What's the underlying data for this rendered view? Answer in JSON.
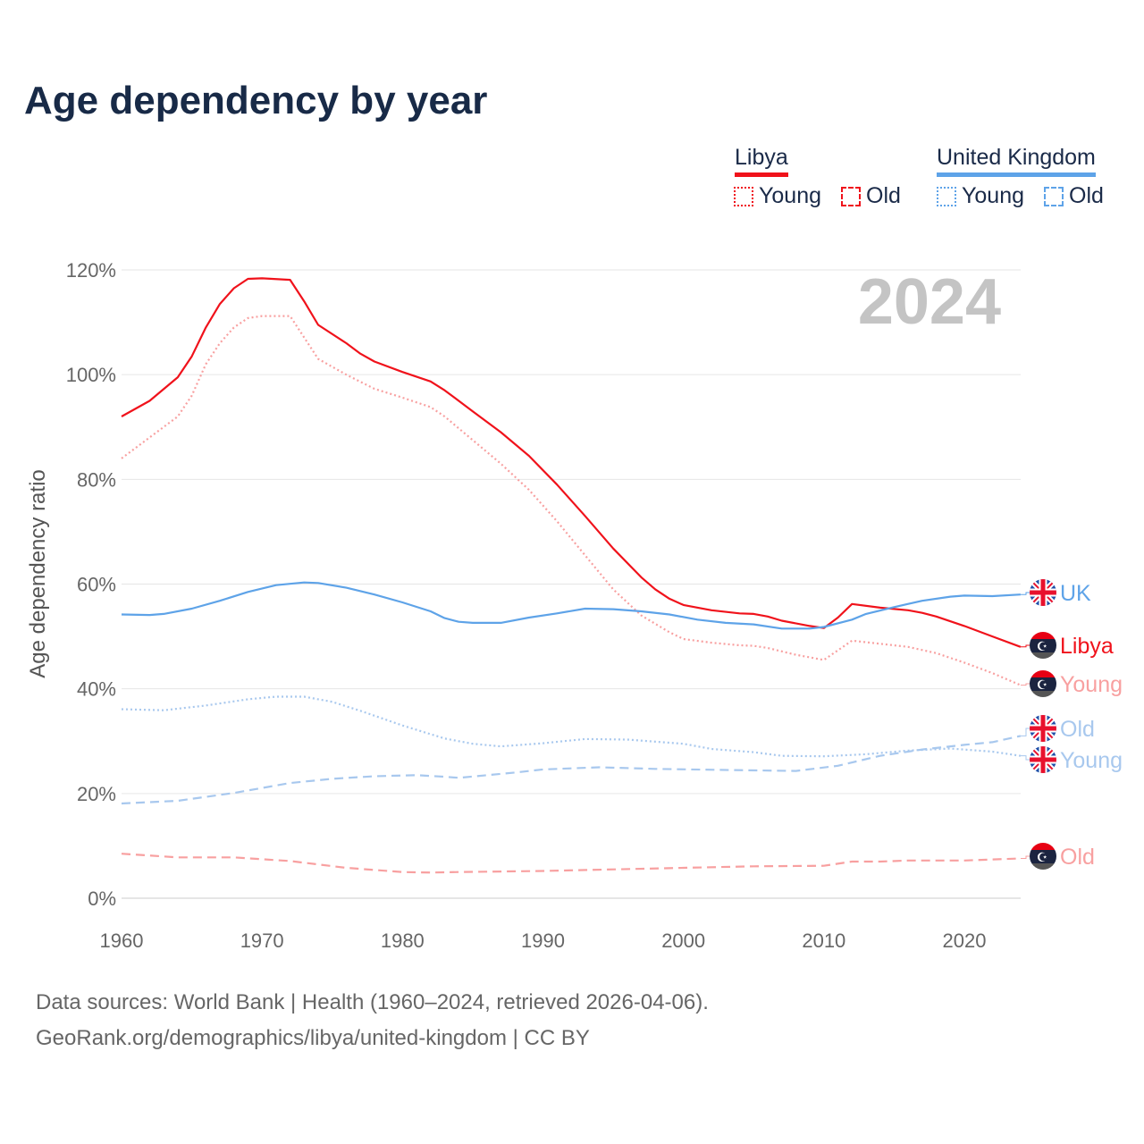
{
  "chart_data": {
    "type": "line",
    "title": "Age dependency by year",
    "ylabel": "Age dependency ratio",
    "xlabel": "",
    "xlim": [
      1960,
      2024
    ],
    "ylim": [
      0,
      120
    ],
    "xticks": [
      "1960",
      "1970",
      "1980",
      "1990",
      "2000",
      "2010",
      "2020"
    ],
    "yticks": [
      "0%",
      "20%",
      "40%",
      "60%",
      "80%",
      "100%",
      "120%"
    ],
    "year_label": "2024",
    "grid": true,
    "legend": {
      "placement": "top-right",
      "groups": [
        {
          "name": "Libya",
          "color": "#f0121b",
          "items": [
            "Young",
            "Old"
          ]
        },
        {
          "name": "United Kingdom",
          "color": "#5ea3e8",
          "items": [
            "Young",
            "Old"
          ]
        }
      ]
    },
    "series": [
      {
        "name": "Libya",
        "end_label": "Libya",
        "country": "libya",
        "style": "solid",
        "color": "#f0121b",
        "points": [
          [
            1960,
            92
          ],
          [
            1962,
            95
          ],
          [
            1964,
            99.5
          ],
          [
            1965,
            103.5
          ],
          [
            1966,
            109
          ],
          [
            1967,
            113.5
          ],
          [
            1968,
            116.5
          ],
          [
            1969,
            118.3
          ],
          [
            1970,
            118.4
          ],
          [
            1972,
            118.1
          ],
          [
            1973,
            114
          ],
          [
            1974,
            109.5
          ],
          [
            1976,
            106
          ],
          [
            1977,
            104
          ],
          [
            1978,
            102.5
          ],
          [
            1980,
            100.5
          ],
          [
            1982,
            98.7
          ],
          [
            1983,
            97
          ],
          [
            1985,
            93
          ],
          [
            1987,
            89
          ],
          [
            1989,
            84.5
          ],
          [
            1991,
            79
          ],
          [
            1993,
            73
          ],
          [
            1995,
            66.8
          ],
          [
            1997,
            61.3
          ],
          [
            1998,
            59
          ],
          [
            1999,
            57.2
          ],
          [
            2000,
            56
          ],
          [
            2002,
            55
          ],
          [
            2004,
            54.4
          ],
          [
            2005,
            54.3
          ],
          [
            2006,
            53.8
          ],
          [
            2007,
            53
          ],
          [
            2009,
            52
          ],
          [
            2010,
            51.6
          ],
          [
            2011,
            53.6
          ],
          [
            2012,
            56.2
          ],
          [
            2014,
            55.5
          ],
          [
            2016,
            55
          ],
          [
            2017,
            54.5
          ],
          [
            2018,
            53.8
          ],
          [
            2020,
            52
          ],
          [
            2022,
            50
          ],
          [
            2024,
            48
          ]
        ]
      },
      {
        "name": "Libya Young",
        "end_label": "Young",
        "country": "libya",
        "style": "dotted",
        "color": "#f8a0a0",
        "points": [
          [
            1960,
            84
          ],
          [
            1964,
            92
          ],
          [
            1965,
            96
          ],
          [
            1966,
            102
          ],
          [
            1967,
            106
          ],
          [
            1968,
            109
          ],
          [
            1969,
            110.8
          ],
          [
            1970,
            111.2
          ],
          [
            1972,
            111.2
          ],
          [
            1974,
            103
          ],
          [
            1976,
            100
          ],
          [
            1978,
            97.3
          ],
          [
            1980,
            95.6
          ],
          [
            1982,
            93.8
          ],
          [
            1983,
            92
          ],
          [
            1985,
            87.5
          ],
          [
            1987,
            83
          ],
          [
            1989,
            78
          ],
          [
            1991,
            72
          ],
          [
            1993,
            65.5
          ],
          [
            1995,
            59
          ],
          [
            1997,
            54
          ],
          [
            1999,
            50.8
          ],
          [
            2000,
            49.5
          ],
          [
            2002,
            48.8
          ],
          [
            2004,
            48.3
          ],
          [
            2005,
            48.2
          ],
          [
            2006,
            47.8
          ],
          [
            2008,
            46.5
          ],
          [
            2010,
            45.5
          ],
          [
            2012,
            49.2
          ],
          [
            2014,
            48.6
          ],
          [
            2016,
            48
          ],
          [
            2018,
            46.8
          ],
          [
            2020,
            45
          ],
          [
            2022,
            43
          ],
          [
            2024,
            40.7
          ]
        ]
      },
      {
        "name": "Libya Old",
        "end_label": "Old",
        "country": "libya",
        "style": "dashed",
        "color": "#f8a0a0",
        "points": [
          [
            1960,
            8.5
          ],
          [
            1964,
            7.8
          ],
          [
            1968,
            7.8
          ],
          [
            1972,
            7.1
          ],
          [
            1976,
            5.8
          ],
          [
            1980,
            5
          ],
          [
            1982,
            4.9
          ],
          [
            1984,
            5
          ],
          [
            1990,
            5.2
          ],
          [
            2000,
            5.8
          ],
          [
            2005,
            6.1
          ],
          [
            2010,
            6.2
          ],
          [
            2012,
            7
          ],
          [
            2014,
            7
          ],
          [
            2016,
            7.2
          ],
          [
            2020,
            7.2
          ],
          [
            2024,
            7.6
          ]
        ]
      },
      {
        "name": "United Kingdom",
        "end_label": "UK",
        "country": "uk",
        "style": "solid",
        "color": "#5ea3e8",
        "points": [
          [
            1960,
            54.2
          ],
          [
            1962,
            54.1
          ],
          [
            1963,
            54.3
          ],
          [
            1965,
            55.3
          ],
          [
            1967,
            56.8
          ],
          [
            1969,
            58.5
          ],
          [
            1971,
            59.8
          ],
          [
            1973,
            60.3
          ],
          [
            1974,
            60.2
          ],
          [
            1976,
            59.3
          ],
          [
            1978,
            58
          ],
          [
            1980,
            56.5
          ],
          [
            1982,
            54.8
          ],
          [
            1983,
            53.5
          ],
          [
            1984,
            52.8
          ],
          [
            1985,
            52.6
          ],
          [
            1987,
            52.6
          ],
          [
            1989,
            53.6
          ],
          [
            1991,
            54.4
          ],
          [
            1993,
            55.3
          ],
          [
            1995,
            55.2
          ],
          [
            1997,
            54.8
          ],
          [
            1999,
            54.2
          ],
          [
            2001,
            53.2
          ],
          [
            2003,
            52.6
          ],
          [
            2005,
            52.3
          ],
          [
            2007,
            51.5
          ],
          [
            2009,
            51.5
          ],
          [
            2010,
            51.8
          ],
          [
            2012,
            53.2
          ],
          [
            2013,
            54.3
          ],
          [
            2015,
            55.6
          ],
          [
            2017,
            56.8
          ],
          [
            2019,
            57.6
          ],
          [
            2020,
            57.8
          ],
          [
            2022,
            57.7
          ],
          [
            2024,
            58
          ]
        ]
      },
      {
        "name": "United Kingdom Young",
        "end_label": "Young",
        "country": "uk",
        "style": "dotted",
        "color": "#a8c8ee",
        "points": [
          [
            1960,
            36.1
          ],
          [
            1963,
            35.9
          ],
          [
            1966,
            36.8
          ],
          [
            1969,
            38
          ],
          [
            1971,
            38.5
          ],
          [
            1973,
            38.5
          ],
          [
            1975,
            37.5
          ],
          [
            1977,
            35.8
          ],
          [
            1980,
            33
          ],
          [
            1983,
            30.5
          ],
          [
            1985,
            29.5
          ],
          [
            1987,
            29
          ],
          [
            1990,
            29.6
          ],
          [
            1993,
            30.4
          ],
          [
            1996,
            30.3
          ],
          [
            2000,
            29.5
          ],
          [
            2002,
            28.5
          ],
          [
            2005,
            27.9
          ],
          [
            2007,
            27.2
          ],
          [
            2010,
            27.1
          ],
          [
            2013,
            27.5
          ],
          [
            2016,
            28.2
          ],
          [
            2019,
            28.6
          ],
          [
            2022,
            28
          ],
          [
            2024,
            27.2
          ]
        ]
      },
      {
        "name": "United Kingdom Old",
        "end_label": "Old",
        "country": "uk",
        "style": "dashed",
        "color": "#a8c8ee",
        "points": [
          [
            1960,
            18.1
          ],
          [
            1964,
            18.6
          ],
          [
            1968,
            20.1
          ],
          [
            1972,
            22
          ],
          [
            1975,
            22.8
          ],
          [
            1978,
            23.3
          ],
          [
            1981,
            23.5
          ],
          [
            1983,
            23.2
          ],
          [
            1984,
            23
          ],
          [
            1988,
            24
          ],
          [
            1990,
            24.6
          ],
          [
            1994,
            25
          ],
          [
            1998,
            24.7
          ],
          [
            2003,
            24.5
          ],
          [
            2008,
            24.3
          ],
          [
            2011,
            25.3
          ],
          [
            2014,
            27.2
          ],
          [
            2017,
            28.4
          ],
          [
            2020,
            29.3
          ],
          [
            2022,
            29.8
          ],
          [
            2024,
            31
          ]
        ]
      }
    ]
  },
  "footer": {
    "line1": "Data sources: World Bank | Health (1960–2024, retrieved 2026-04-06).",
    "line2": "GeoRank.org/demographics/libya/united-kingdom | CC BY"
  }
}
